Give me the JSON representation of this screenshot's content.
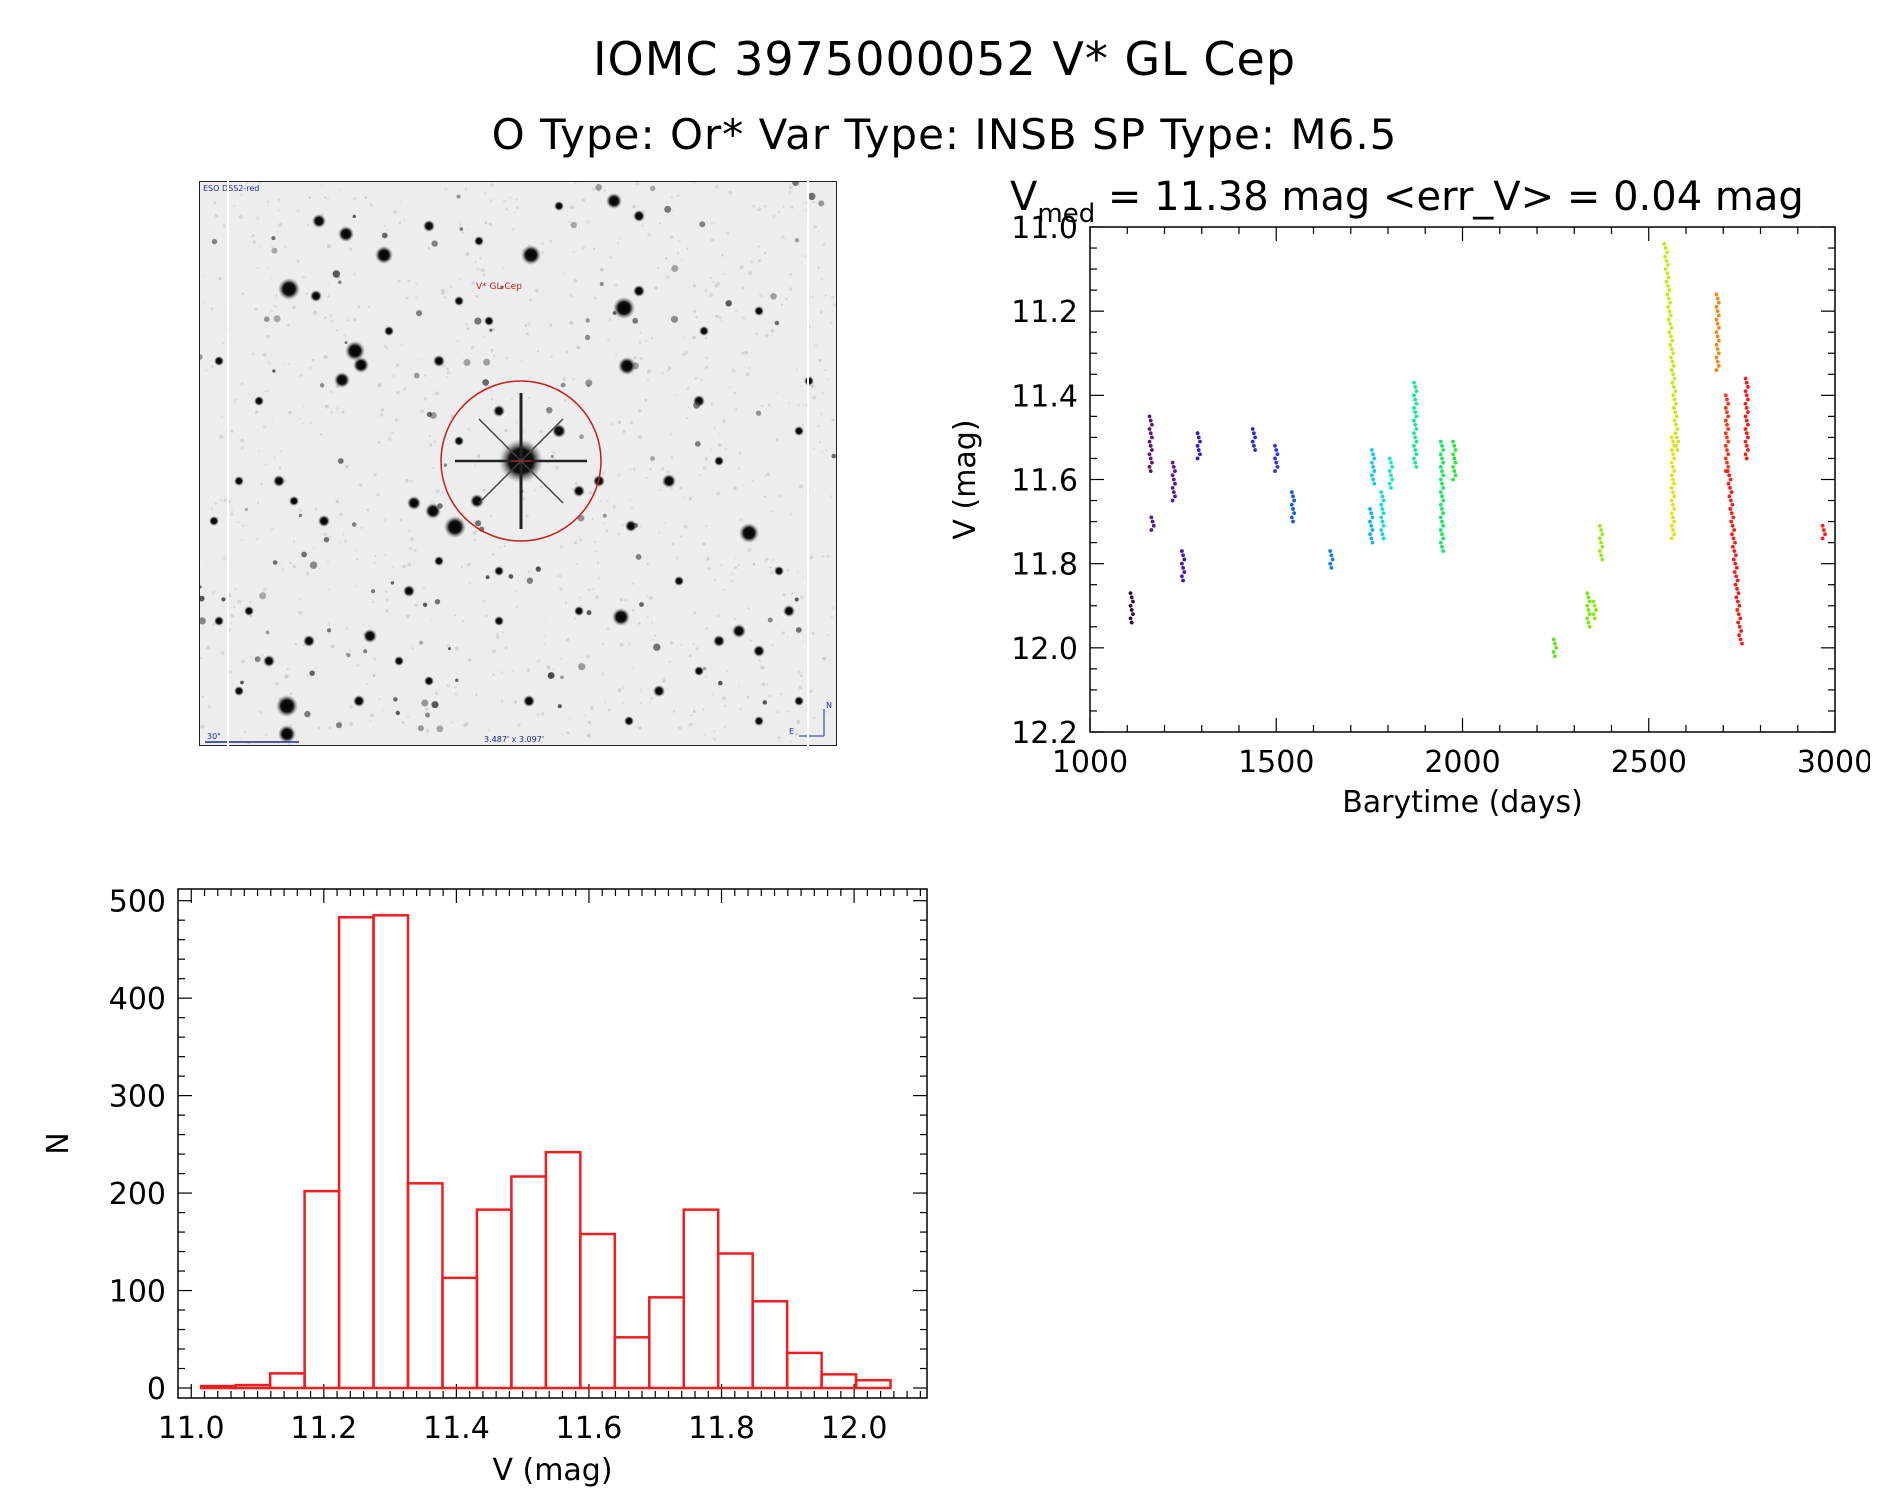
{
  "header": {
    "title": "IOMC 3975000052   V* GL Cep",
    "subtitle": "O Type: Or*  Var Type: INSB  SP Type: M6.5"
  },
  "finder": {
    "survey_label": "ESO DSS2-red",
    "target_label": "V* GL Cep",
    "scale_label": "30\"",
    "fov_label": "3.487' x 3.097'",
    "north_label": "N",
    "east_label": "E"
  },
  "lightcurve": {
    "stats_prefix": "V",
    "stats_sub": "med",
    "stats_text": " = 11.38 mag <err_V> = 0.04 mag"
  },
  "chart_data": [
    {
      "type": "scatter",
      "xlabel": "Barytime (days)",
      "ylabel": "V (mag)",
      "xlim": [
        1000,
        3000
      ],
      "ylim": [
        12.2,
        11.0
      ],
      "y_inverted": true,
      "xticks": [
        1000,
        1500,
        2000,
        2500,
        3000
      ],
      "yticks": [
        "11.0",
        "11.2",
        "11.4",
        "11.6",
        "11.8",
        "12.0",
        "12.2"
      ],
      "groups": [
        {
          "x": 1112,
          "y_min": 11.87,
          "y_max": 11.94,
          "color": "#3a0a3a"
        },
        {
          "x": 1163,
          "y_min": 11.45,
          "y_max": 11.58,
          "color": "#5a1a6e"
        },
        {
          "x": 1168,
          "y_min": 11.69,
          "y_max": 11.72,
          "color": "#5a1a8e"
        },
        {
          "x": 1225,
          "y_min": 11.56,
          "y_max": 11.65,
          "color": "#5a1a8e"
        },
        {
          "x": 1250,
          "y_min": 11.77,
          "y_max": 11.84,
          "color": "#4a1a9e"
        },
        {
          "x": 1292,
          "y_min": 11.49,
          "y_max": 11.55,
          "color": "#3a1abe"
        },
        {
          "x": 1440,
          "y_min": 11.48,
          "y_max": 11.53,
          "color": "#2a2ad0"
        },
        {
          "x": 1500,
          "y_min": 11.52,
          "y_max": 11.58,
          "color": "#2a3ae0"
        },
        {
          "x": 1545,
          "y_min": 11.63,
          "y_max": 11.7,
          "color": "#1a5ae0"
        },
        {
          "x": 1648,
          "y_min": 11.77,
          "y_max": 11.81,
          "color": "#1a7ae8"
        },
        {
          "x": 1755,
          "y_min": 11.67,
          "y_max": 11.75,
          "color": "#1ab0f0"
        },
        {
          "x": 1760,
          "y_min": 11.53,
          "y_max": 11.61,
          "color": "#1ac8f0"
        },
        {
          "x": 1785,
          "y_min": 11.63,
          "y_max": 11.74,
          "color": "#1ad8e0"
        },
        {
          "x": 1808,
          "y_min": 11.55,
          "y_max": 11.62,
          "color": "#1ae8c0"
        },
        {
          "x": 1873,
          "y_min": 11.37,
          "y_max": 11.57,
          "color": "#1ae890"
        },
        {
          "x": 1945,
          "y_min": 11.51,
          "y_max": 11.77,
          "color": "#1ae860"
        },
        {
          "x": 1978,
          "y_min": 11.51,
          "y_max": 11.6,
          "color": "#2ae840"
        },
        {
          "x": 2248,
          "y_min": 11.98,
          "y_max": 12.02,
          "color": "#5ae81a"
        },
        {
          "x": 2338,
          "y_min": 11.87,
          "y_max": 11.95,
          "color": "#7ae81a"
        },
        {
          "x": 2355,
          "y_min": 11.89,
          "y_max": 11.93,
          "color": "#8ae81a"
        },
        {
          "x": 2372,
          "y_min": 11.71,
          "y_max": 11.79,
          "color": "#9ae81a"
        },
        {
          "x": 2545,
          "y_min": 11.04,
          "y_max": 11.53,
          "color": "#c8e81a"
        },
        {
          "x": 2565,
          "y_min": 11.5,
          "y_max": 11.74,
          "color": "#e8e01a"
        },
        {
          "x": 2685,
          "y_min": 11.16,
          "y_max": 11.34,
          "color": "#f08a1a"
        },
        {
          "x": 2710,
          "y_min": 11.4,
          "y_max": 11.58,
          "color": "#f03a1a"
        },
        {
          "x": 2715,
          "y_min": 11.58,
          "y_max": 11.99,
          "color": "#f0201a"
        },
        {
          "x": 2763,
          "y_min": 11.36,
          "y_max": 11.55,
          "color": "#f0201a"
        },
        {
          "x": 2970,
          "y_min": 11.71,
          "y_max": 11.74,
          "color": "#f0201a"
        }
      ]
    },
    {
      "type": "bar",
      "xlabel": "V (mag)",
      "ylabel": "N",
      "xlim": [
        10.98,
        12.11
      ],
      "ylim": [
        0,
        500
      ],
      "xticks": [
        "11.0",
        "11.2",
        "11.4",
        "11.6",
        "11.8",
        "12.0"
      ],
      "yticks": [
        "0",
        "100",
        "200",
        "300",
        "400",
        "500"
      ],
      "color": "#f01e1e",
      "bin_width": 0.052,
      "bin_starts": [
        11.015,
        11.067,
        11.119,
        11.171,
        11.223,
        11.275,
        11.327,
        11.379,
        11.431,
        11.483,
        11.535,
        11.587,
        11.639,
        11.691,
        11.743,
        11.795,
        11.847,
        11.899,
        11.951,
        12.003
      ],
      "values": [
        2,
        3,
        15,
        202,
        483,
        485,
        210,
        113,
        183,
        217,
        242,
        158,
        52,
        93,
        183,
        138,
        89,
        36,
        14,
        8
      ]
    }
  ]
}
